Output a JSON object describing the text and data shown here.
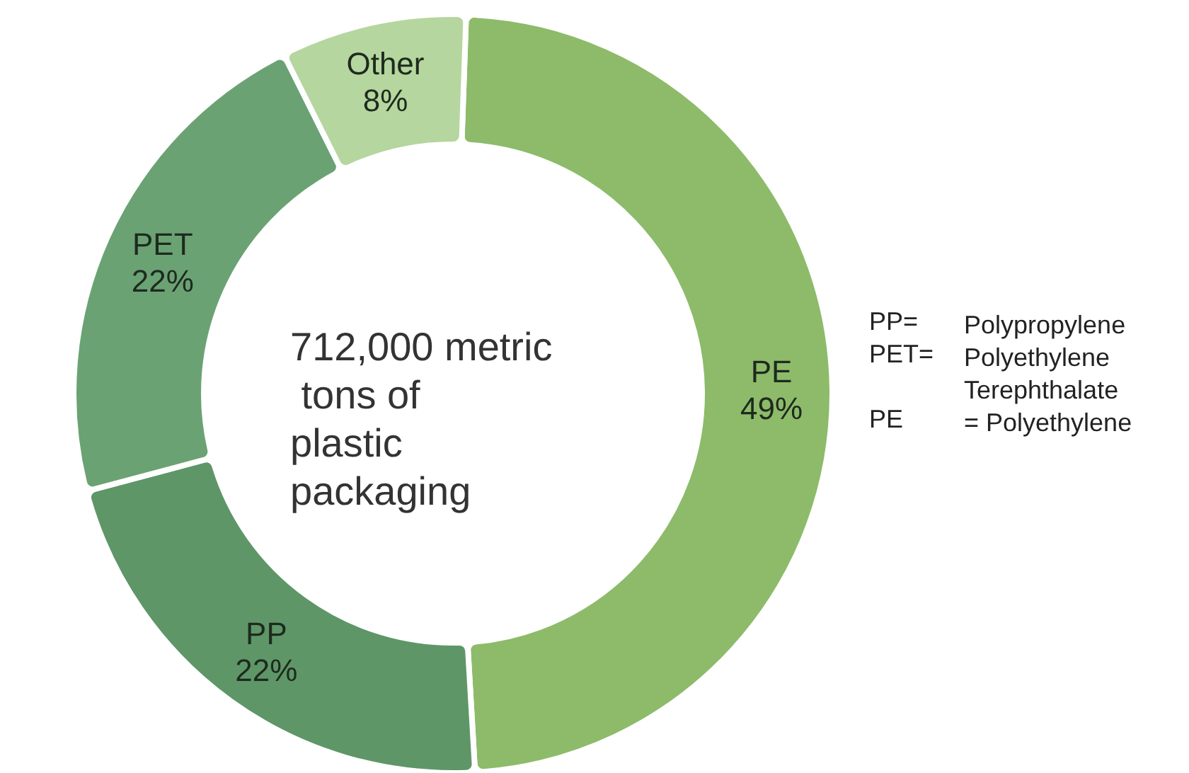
{
  "chart_data": {
    "type": "donut",
    "title": "712,000 metric tons of plastic packaging",
    "categories": [
      "PE",
      "PP",
      "PET",
      "Other"
    ],
    "values": [
      49,
      22,
      22,
      8
    ],
    "value_labels": [
      "49%",
      "22%",
      "22%",
      "8%"
    ],
    "colors": [
      "#8dbb6a",
      "#5e9668",
      "#6ba274",
      "#b5d69e"
    ],
    "annotations": [
      "PP= Polypropylene",
      "PET= Polyethylene Terephthalate",
      "PE = Polyethylene"
    ],
    "legend": false
  }
}
